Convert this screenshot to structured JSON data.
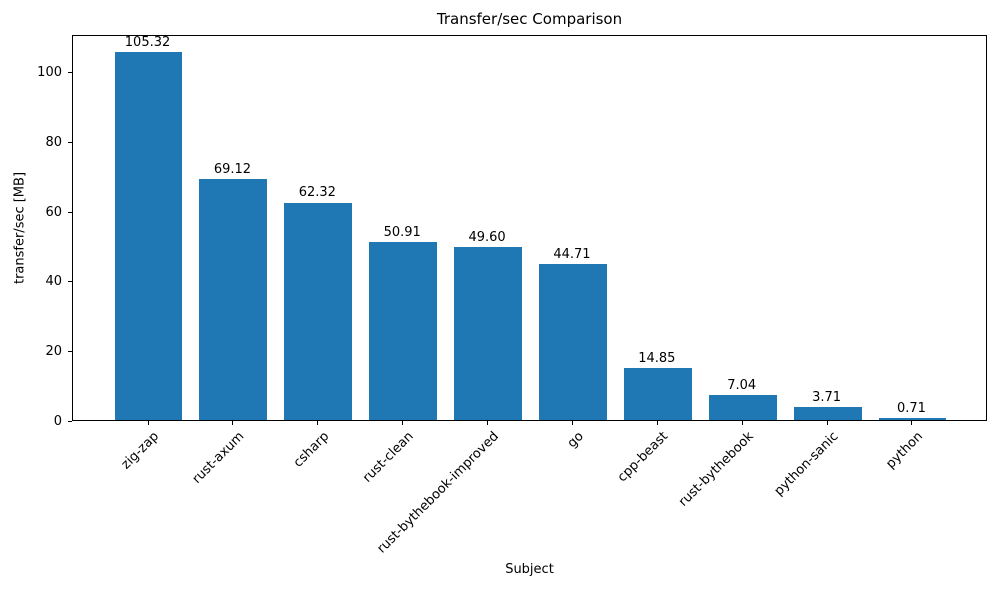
{
  "chart_data": {
    "type": "bar",
    "title": "Transfer/sec Comparison",
    "xlabel": "Subject",
    "ylabel": "transfer/sec [MB]",
    "categories": [
      "zig-zap",
      "rust-axum",
      "csharp",
      "rust-clean",
      "rust-bythebook-improved",
      "go",
      "cpp-beast",
      "rust-bythebook",
      "python-sanic",
      "python"
    ],
    "values": [
      105.32,
      69.12,
      62.32,
      50.91,
      49.6,
      44.71,
      14.85,
      7.04,
      3.71,
      0.71
    ],
    "value_labels": [
      "105.32",
      "69.12",
      "62.32",
      "50.91",
      "49.60",
      "44.71",
      "14.85",
      "7.04",
      "3.71",
      "0.71"
    ],
    "yticks": [
      0,
      20,
      40,
      60,
      80,
      100
    ],
    "ylim": [
      0,
      110.6
    ],
    "bar_color": "#1f77b4",
    "grid": false,
    "legend": null,
    "xtick_rotation_deg": 45
  }
}
